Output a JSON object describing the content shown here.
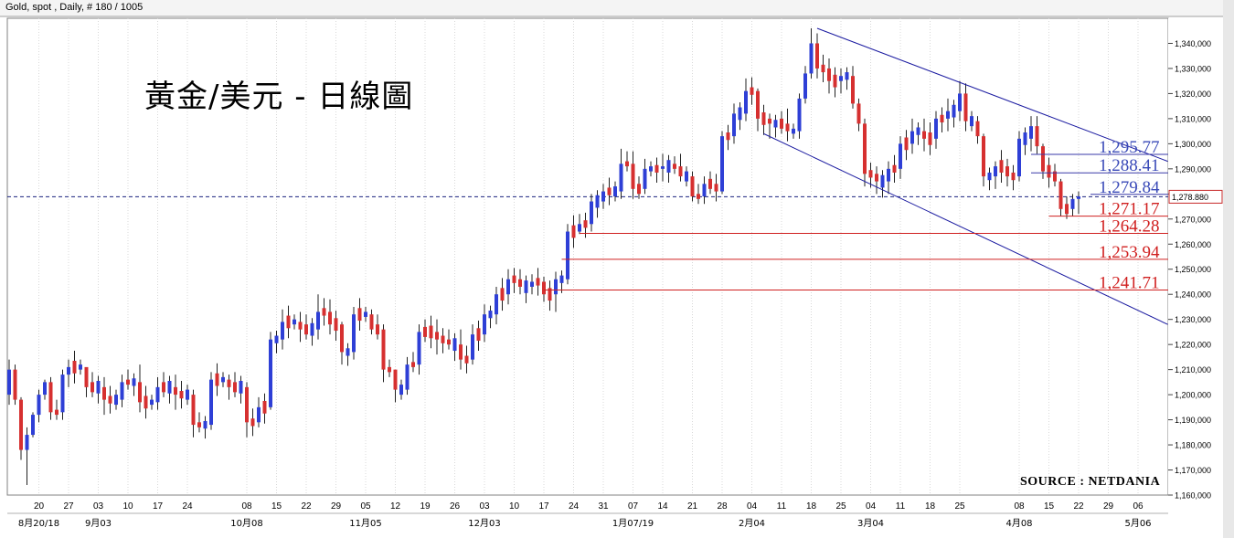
{
  "header": {
    "instrument_label": "Gold, spot , Daily, # 180 / 1005"
  },
  "chart_data": {
    "type": "candlestick",
    "title": "黃金/美元 - 日線圖",
    "source": "SOURCE : NETDANIA",
    "ylim": [
      1160000,
      1350000
    ],
    "y_ticks": [
      1160000,
      1170000,
      1180000,
      1190000,
      1200000,
      1210000,
      1220000,
      1230000,
      1240000,
      1250000,
      1260000,
      1270000,
      1280000,
      1290000,
      1300000,
      1310000,
      1320000,
      1330000,
      1340000
    ],
    "y_tick_labels": [
      "1,160,000",
      "1,170,000",
      "1,180,000",
      "1,190,000",
      "1,200,000",
      "1,210,000",
      "1,220,000",
      "1,230,000",
      "1,240,000",
      "1,250,000",
      "1,260,000",
      "1,270,000",
      "1,280,000",
      "1,290,000",
      "1,300,000",
      "1,310,000",
      "1,320,000",
      "1,330,000",
      "1,340,000"
    ],
    "current_price": 1278880,
    "current_price_label": "1,278.880",
    "x_day_ticks": [
      {
        "i": 5,
        "label": "20"
      },
      {
        "i": 10,
        "label": "27"
      },
      {
        "i": 15,
        "label": "03"
      },
      {
        "i": 20,
        "label": "10"
      },
      {
        "i": 25,
        "label": "17"
      },
      {
        "i": 30,
        "label": "24"
      },
      {
        "i": 40,
        "label": "08"
      },
      {
        "i": 45,
        "label": "15"
      },
      {
        "i": 50,
        "label": "22"
      },
      {
        "i": 55,
        "label": "29"
      },
      {
        "i": 60,
        "label": "05"
      },
      {
        "i": 65,
        "label": "12"
      },
      {
        "i": 70,
        "label": "19"
      },
      {
        "i": 75,
        "label": "26"
      },
      {
        "i": 80,
        "label": "03"
      },
      {
        "i": 85,
        "label": "10"
      },
      {
        "i": 90,
        "label": "17"
      },
      {
        "i": 95,
        "label": "24"
      },
      {
        "i": 100,
        "label": "31"
      },
      {
        "i": 105,
        "label": "07"
      },
      {
        "i": 110,
        "label": "14"
      },
      {
        "i": 115,
        "label": "21"
      },
      {
        "i": 120,
        "label": "28"
      },
      {
        "i": 125,
        "label": "04"
      },
      {
        "i": 130,
        "label": "11"
      },
      {
        "i": 135,
        "label": "18"
      },
      {
        "i": 140,
        "label": "25"
      },
      {
        "i": 145,
        "label": "04"
      },
      {
        "i": 150,
        "label": "11"
      },
      {
        "i": 155,
        "label": "18"
      },
      {
        "i": 160,
        "label": "25"
      },
      {
        "i": 170,
        "label": "08"
      },
      {
        "i": 175,
        "label": "15"
      },
      {
        "i": 180,
        "label": "22"
      },
      {
        "i": 185,
        "label": "29"
      },
      {
        "i": 190,
        "label": "06"
      }
    ],
    "x_month_ticks": [
      {
        "i": 5,
        "label": "8月20/18"
      },
      {
        "i": 15,
        "label": "9月03"
      },
      {
        "i": 40,
        "label": "10月08"
      },
      {
        "i": 60,
        "label": "11月05"
      },
      {
        "i": 80,
        "label": "12月03"
      },
      {
        "i": 105,
        "label": "1月07/19"
      },
      {
        "i": 125,
        "label": "2月04"
      },
      {
        "i": 145,
        "label": "3月04"
      },
      {
        "i": 170,
        "label": "4月08"
      },
      {
        "i": 190,
        "label": "5月06"
      }
    ],
    "resistance_levels": [
      {
        "value": 1295.77,
        "label": "1,295.77",
        "from_i": 172
      },
      {
        "value": 1288.41,
        "label": "1,288.41",
        "from_i": 172
      },
      {
        "value": 1279.84,
        "label": "1,279.84",
        "from_i": 182
      }
    ],
    "support_levels": [
      {
        "value": 1271.17,
        "label": "1,271.17",
        "from_i": 175
      },
      {
        "value": 1264.28,
        "label": "1,264.28",
        "from_i": 96
      },
      {
        "value": 1253.94,
        "label": "1,253.94",
        "from_i": 93
      },
      {
        "value": 1241.71,
        "label": "1,241.71",
        "from_i": 90
      }
    ],
    "trend_lines": [
      {
        "from_i": 136,
        "from_value": 1346000,
        "to_i": 195,
        "to_value": 1293000
      },
      {
        "from_i": 127,
        "from_value": 1304000,
        "to_i": 195,
        "to_value": 1228000
      }
    ],
    "ohlc_anchors": [
      [
        0,
        1200,
        1214,
        1196,
        1210
      ],
      [
        1,
        1210,
        1212,
        1196,
        1198
      ],
      [
        2,
        1198,
        1199,
        1174,
        1178
      ],
      [
        3,
        1178,
        1187,
        1164,
        1184
      ],
      [
        4,
        1184,
        1193,
        1183,
        1192
      ],
      [
        5,
        1192,
        1202,
        1189,
        1200
      ],
      [
        6,
        1200,
        1206,
        1198,
        1205
      ],
      [
        7,
        1205,
        1207,
        1190,
        1193
      ],
      [
        9,
        1193,
        1210,
        1190,
        1208
      ],
      [
        10,
        1208,
        1214,
        1203,
        1211
      ],
      [
        13,
        1211,
        1210,
        1199,
        1203
      ],
      [
        16,
        1203,
        1207,
        1192,
        1198
      ],
      [
        19,
        1198,
        1208,
        1195,
        1205
      ],
      [
        22,
        1205,
        1212,
        1193,
        1197
      ],
      [
        25,
        1197,
        1207,
        1194,
        1203
      ],
      [
        28,
        1203,
        1208,
        1194,
        1200
      ],
      [
        31,
        1200,
        1202,
        1183,
        1188
      ],
      [
        34,
        1188,
        1209,
        1186,
        1206
      ],
      [
        37,
        1206,
        1208,
        1198,
        1203
      ],
      [
        40,
        1203,
        1205,
        1183,
        1189
      ],
      [
        42,
        1189,
        1199,
        1187,
        1195
      ],
      [
        44,
        1195,
        1225,
        1194,
        1222
      ],
      [
        46,
        1222,
        1234,
        1218,
        1229
      ],
      [
        49,
        1229,
        1233,
        1221,
        1226
      ],
      [
        52,
        1226,
        1240,
        1222,
        1233
      ],
      [
        54,
        1233,
        1238,
        1224,
        1228
      ],
      [
        56,
        1228,
        1229,
        1212,
        1217
      ],
      [
        58,
        1217,
        1235,
        1214,
        1232
      ],
      [
        61,
        1232,
        1234,
        1224,
        1226
      ],
      [
        63,
        1226,
        1228,
        1205,
        1210
      ],
      [
        65,
        1210,
        1206,
        1197,
        1202
      ],
      [
        67,
        1202,
        1215,
        1200,
        1212
      ],
      [
        69,
        1212,
        1228,
        1208,
        1225
      ],
      [
        72,
        1225,
        1230,
        1216,
        1222
      ],
      [
        74,
        1222,
        1226,
        1218,
        1220
      ],
      [
        76,
        1220,
        1226,
        1210,
        1214
      ],
      [
        78,
        1214,
        1228,
        1212,
        1224
      ],
      [
        80,
        1224,
        1236,
        1221,
        1232
      ],
      [
        82,
        1232,
        1243,
        1228,
        1240
      ],
      [
        84,
        1240,
        1250,
        1236,
        1246
      ],
      [
        86,
        1246,
        1250,
        1240,
        1243
      ],
      [
        88,
        1243,
        1248,
        1240,
        1245
      ],
      [
        90,
        1245,
        1247,
        1237,
        1240
      ],
      [
        92,
        1240,
        1249,
        1233,
        1246
      ],
      [
        94,
        1246,
        1268,
        1244,
        1265
      ],
      [
        96,
        1265,
        1272,
        1264,
        1268
      ],
      [
        98,
        1268,
        1280,
        1265,
        1277
      ],
      [
        100,
        1277,
        1284,
        1274,
        1281
      ],
      [
        103,
        1281,
        1298,
        1278,
        1292
      ],
      [
        105,
        1292,
        1297,
        1278,
        1282
      ],
      [
        107,
        1282,
        1294,
        1280,
        1290
      ],
      [
        110,
        1290,
        1296,
        1285,
        1291
      ],
      [
        113,
        1291,
        1296,
        1285,
        1287
      ],
      [
        115,
        1287,
        1289,
        1277,
        1279
      ],
      [
        117,
        1279,
        1287,
        1276,
        1284
      ],
      [
        119,
        1284,
        1288,
        1277,
        1281
      ],
      [
        120,
        1281,
        1305,
        1280,
        1303
      ],
      [
        122,
        1303,
        1316,
        1300,
        1312
      ],
      [
        124,
        1312,
        1326,
        1309,
        1321
      ],
      [
        126,
        1321,
        1322,
        1305,
        1310
      ],
      [
        128,
        1310,
        1312,
        1302,
        1308
      ],
      [
        131,
        1308,
        1314,
        1301,
        1305
      ],
      [
        133,
        1305,
        1320,
        1302,
        1318
      ],
      [
        134,
        1318,
        1331,
        1316,
        1328
      ],
      [
        135,
        1328,
        1346,
        1326,
        1340
      ],
      [
        136,
        1340,
        1344,
        1326,
        1330
      ],
      [
        138,
        1330,
        1334,
        1320,
        1325
      ],
      [
        140,
        1325,
        1330,
        1320,
        1327
      ],
      [
        142,
        1327,
        1331,
        1314,
        1316
      ],
      [
        143,
        1316,
        1318,
        1305,
        1308
      ],
      [
        144,
        1308,
        1310,
        1283,
        1288
      ],
      [
        146,
        1288,
        1291,
        1280,
        1285
      ],
      [
        148,
        1285,
        1293,
        1280,
        1290
      ],
      [
        150,
        1290,
        1303,
        1286,
        1300
      ],
      [
        152,
        1300,
        1310,
        1296,
        1305
      ],
      [
        154,
        1305,
        1310,
        1297,
        1302
      ],
      [
        156,
        1302,
        1313,
        1298,
        1310
      ],
      [
        158,
        1310,
        1318,
        1305,
        1313
      ],
      [
        160,
        1313,
        1325,
        1309,
        1320
      ],
      [
        161,
        1320,
        1324,
        1305,
        1309
      ],
      [
        163,
        1309,
        1311,
        1300,
        1303
      ],
      [
        164,
        1303,
        1304,
        1283,
        1287
      ],
      [
        166,
        1287,
        1293,
        1282,
        1291
      ],
      [
        168,
        1291,
        1294,
        1283,
        1287
      ],
      [
        170,
        1287,
        1305,
        1285,
        1302
      ],
      [
        172,
        1302,
        1311,
        1297,
        1307
      ],
      [
        173,
        1307,
        1311,
        1296,
        1299
      ],
      [
        174,
        1299,
        1300,
        1286,
        1289
      ],
      [
        176,
        1289,
        1292,
        1283,
        1285
      ],
      [
        177,
        1285,
        1286,
        1271,
        1274
      ],
      [
        179,
        1274,
        1280,
        1271,
        1278
      ],
      [
        180,
        1278,
        1281,
        1272,
        1279
      ]
    ]
  }
}
